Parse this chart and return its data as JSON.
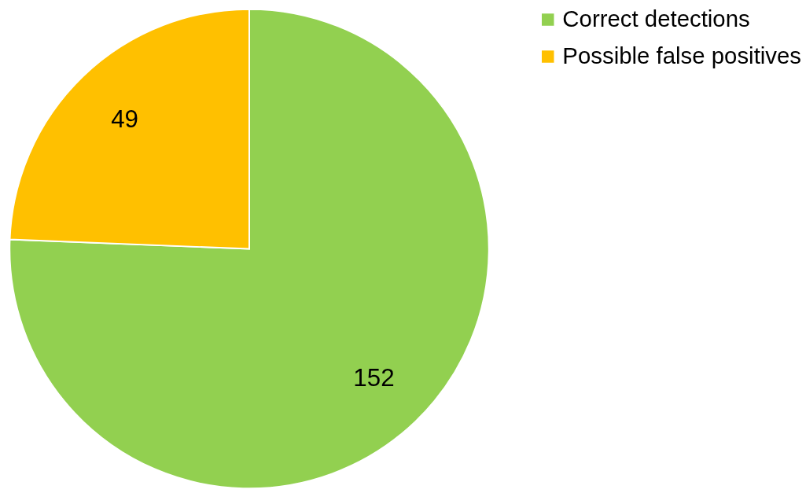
{
  "chart_data": {
    "type": "pie",
    "categories": [
      "Correct detections",
      "Possible false positives"
    ],
    "values": [
      152,
      49
    ],
    "colors": [
      "#92d050",
      "#ffc000"
    ],
    "data_labels": true,
    "legend": "right"
  }
}
